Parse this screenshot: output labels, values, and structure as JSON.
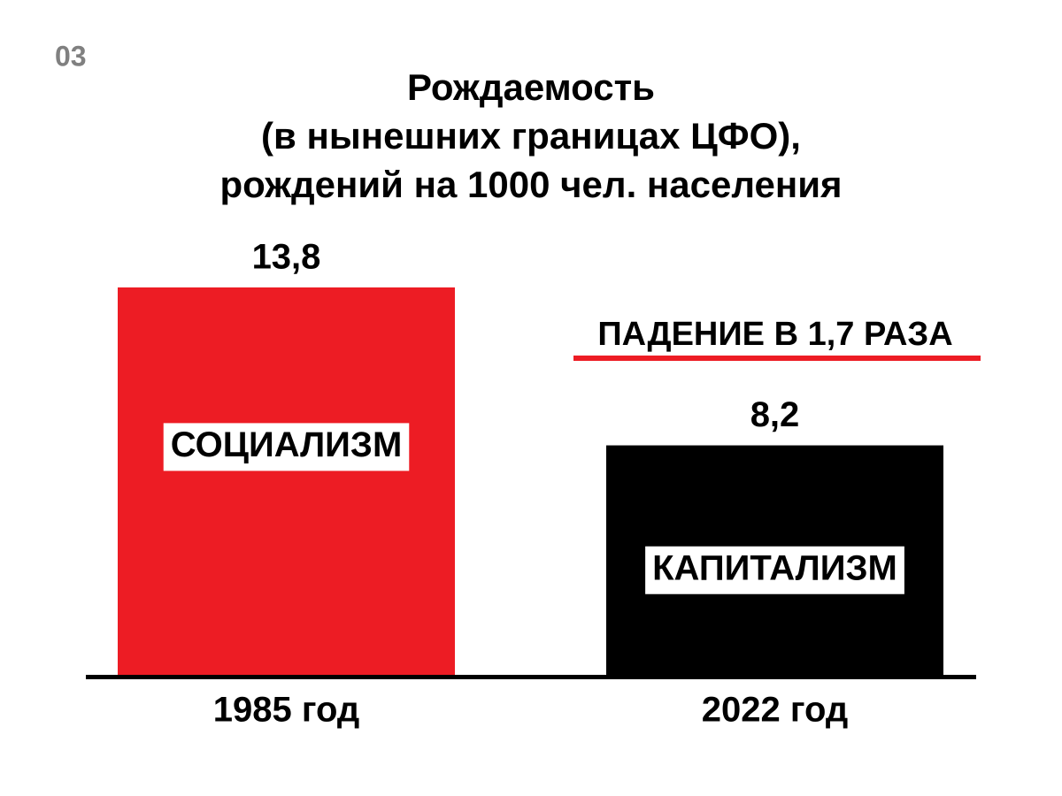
{
  "chart_data": {
    "type": "bar",
    "page_number": "03",
    "title": [
      "Рождаемость",
      "(в нынешних границах ЦФО),",
      "рождений на 1000 чел. населения"
    ],
    "categories": [
      "1985 год",
      "2022 год"
    ],
    "values": [
      13.8,
      8.2
    ],
    "value_labels": [
      "13,8",
      "8,2"
    ],
    "bar_labels": [
      "СОЦИАЛИЗМ",
      "КАПИТАЛИЗМ"
    ],
    "colors": [
      "#ed1c24",
      "#000000"
    ],
    "annotation": "ПАДЕНИЕ В 1,7 РАЗА"
  }
}
